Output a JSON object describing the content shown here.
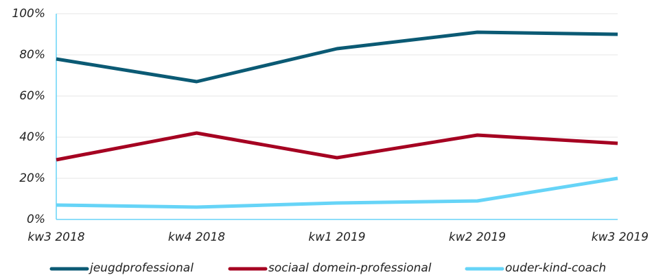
{
  "chart_data": {
    "type": "line",
    "categories": [
      "kw3 2018",
      "kw4 2018",
      "kw1 2019",
      "kw2 2019",
      "kw3 2019"
    ],
    "series": [
      {
        "name": "jeugdprofessional",
        "color": "#0b5a74",
        "values": [
          78,
          67,
          83,
          91,
          90
        ]
      },
      {
        "name": "sociaal domein-professional",
        "color": "#a50021",
        "values": [
          29,
          42,
          30,
          41,
          37
        ]
      },
      {
        "name": "ouder-kind-coach",
        "color": "#66d4f7",
        "values": [
          7,
          6,
          8,
          9,
          20
        ]
      }
    ],
    "ylim": [
      0,
      100
    ],
    "yticks": [
      {
        "value": 0,
        "label": "0%"
      },
      {
        "value": 20,
        "label": "20%"
      },
      {
        "value": 40,
        "label": "40%"
      },
      {
        "value": 60,
        "label": "60%"
      },
      {
        "value": 80,
        "label": "80%"
      },
      {
        "value": 100,
        "label": "100%"
      }
    ],
    "grid": true,
    "legend": "bottom"
  }
}
